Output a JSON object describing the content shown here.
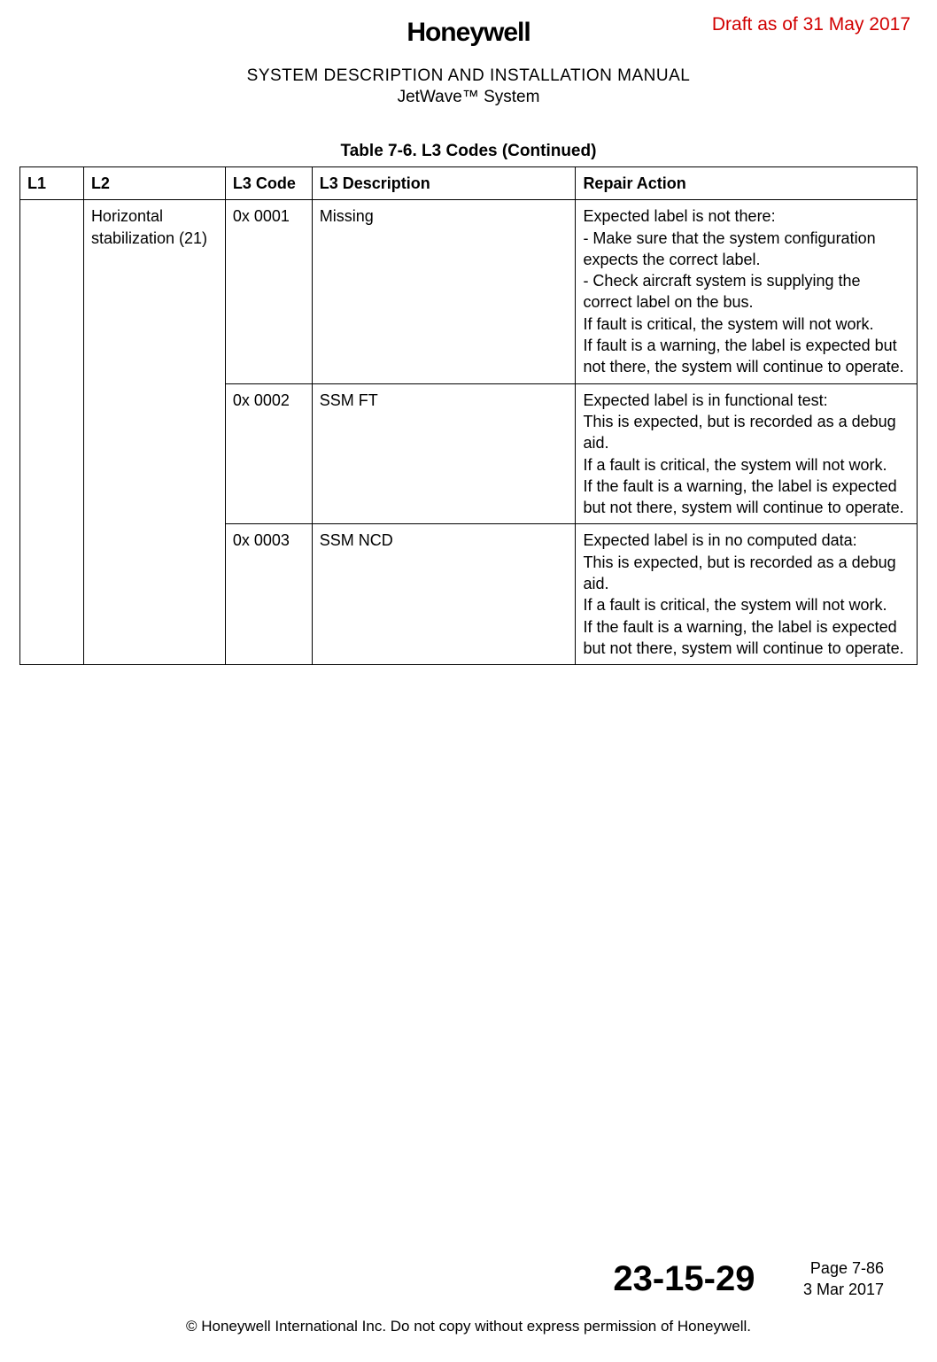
{
  "draft_label": "Draft as of 31 May 2017",
  "logo_text": "Honeywell",
  "header": {
    "line1": "SYSTEM DESCRIPTION AND INSTALLATION MANUAL",
    "line2": "JetWave™ System"
  },
  "table": {
    "caption": "Table 7-6.   L3 Codes  (Continued)",
    "columns": [
      "L1",
      "L2",
      "L3 Code",
      "L3 Description",
      "Repair Action"
    ],
    "rows": [
      {
        "l1": "",
        "l2": "Horizontal stabilization (21)",
        "l2_rowspan": 3,
        "l3code": "0x 0001",
        "l3desc": "Missing",
        "repair": "Expected label is not there:\n- Make sure that the system configuration expects the correct label.\n- Check aircraft system is supplying the correct label on the bus.\nIf fault is critical, the system will not work.\nIf fault is a warning, the label is expected but not there, the system will continue to operate."
      },
      {
        "l3code": "0x 0002",
        "l3desc": "SSM FT",
        "repair": "Expected label is in functional test:\nThis is expected, but is recorded as a debug aid.\nIf a fault is critical, the system will not work.\nIf the fault is a warning, the label is expected but not there, system will continue to operate."
      },
      {
        "l3code": "0x 0003",
        "l3desc": "SSM NCD",
        "repair": "Expected label is in no computed data:\nThis is expected, but is recorded as a debug aid.\nIf a fault is critical, the system will not work.\nIf the fault is a warning, the label is expected but not there, system will continue to operate."
      }
    ]
  },
  "footer": {
    "docnum": "23-15-29",
    "page": "Page 7-86",
    "date": "3 Mar 2017"
  },
  "copyright": "© Honeywell International Inc. Do not copy without express permission of Honeywell."
}
